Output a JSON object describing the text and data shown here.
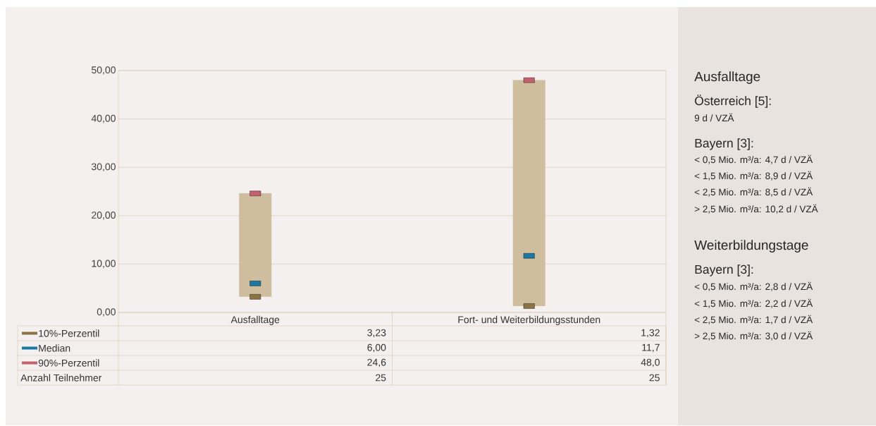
{
  "chart_data": [
    {
      "type": "bar",
      "categories": [
        "Ausfalltage",
        "Fort- und Weiterbildungsstunden"
      ],
      "series": [
        {
          "type": "bar",
          "color": "#cfbe9d",
          "base": [
            3.23,
            1.32
          ],
          "values": [
            21.4,
            46.7
          ]
        },
        {
          "type": "scatter",
          "name": "10%-Perzentil",
          "color": "#8b7442",
          "marker": "square",
          "values": [
            3.23,
            1.32
          ],
          "value_labels": [
            "3,23",
            "1,32"
          ]
        },
        {
          "type": "scatter",
          "name": "Median",
          "color": "#1a78a4",
          "marker": "square",
          "values": [
            6.0,
            11.7
          ],
          "value_labels": [
            "6,00",
            "11,7"
          ]
        },
        {
          "type": "scatter",
          "name": "90%-Perzentil",
          "color": "#c4606c",
          "marker": "square",
          "values": [
            24.6,
            48.0
          ],
          "value_labels": [
            "24,6",
            "48,0"
          ]
        }
      ],
      "ylim": [
        0,
        50
      ],
      "yticks": [
        {
          "value": 0,
          "label": "0,00"
        },
        {
          "value": 10,
          "label": "10,00"
        },
        {
          "value": 20,
          "label": "20,00"
        },
        {
          "value": 30,
          "label": "30,00"
        },
        {
          "value": 40,
          "label": "40,00"
        },
        {
          "value": 50,
          "label": "50,00"
        }
      ],
      "grid": "y",
      "legend": "bottom",
      "annotations": [
        "Anzahl Teilnehmer",
        "25",
        "25"
      ]
    },
    {
      "type": "other",
      "title": "Ausfalltage",
      "annotations": [
        "Österreich [5]:",
        "9 d / VZÄ",
        "Bayern [3]:",
        "< 0,5 Mio. m³/a: 4,7 d / VZÄ",
        "< 1,5 Mio. m³/a: 8,9 d / VZÄ",
        "< 2,5 Mio. m³/a: 8,5 d / VZÄ",
        "> 2,5 Mio. m³/a: 10,2 d / VZÄ",
        "Weiterbildungstage",
        "Bayern [3]:",
        "< 0,5 Mio. m³/a: 2,8 d / VZÄ",
        "< 1,5 Mio. m³/a: 2,2 d / VZÄ",
        "< 2,5 Mio. m³/a: 1,7 d / VZÄ",
        "> 2,5 Mio. m³/a: 3,0 d / VZÄ"
      ]
    }
  ]
}
